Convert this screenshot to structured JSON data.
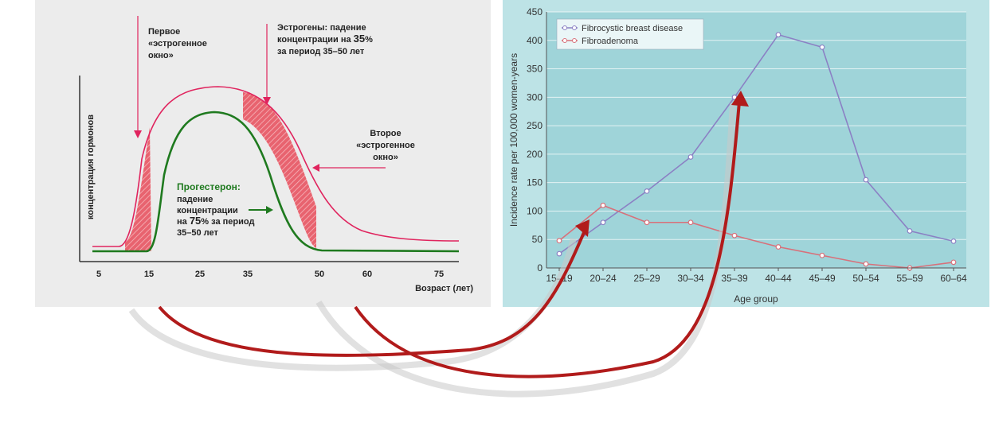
{
  "chart_data": [
    {
      "type": "line",
      "ylabel": "концентрация гормонов",
      "xlabel": "Возраст (лет)",
      "x_ticks": [
        "5",
        "15",
        "25",
        "35",
        "50",
        "60",
        "75"
      ],
      "annotations": {
        "first_window": [
          "Первое",
          "«эстрогенное",
          "окно»"
        ],
        "estrogen_drop": {
          "line1": "Эстрогены: падение",
          "line2_pre": "концентрации на ",
          "line2_bold": "35",
          "line2_post": "%",
          "line3": "за период 35–50 лет"
        },
        "second_window": [
          "Второе",
          "«эстрогенное",
          "окно»"
        ],
        "progesterone": {
          "title": "Прогестерон:",
          "line1": "падение",
          "line2": "концентрации",
          "line3_pre": "на ",
          "line3_bold": "75",
          "line3_post": "% за период",
          "line4": "35–50 лет"
        }
      },
      "series": [
        {
          "name": "Эстрогены",
          "color": "#e0245e"
        },
        {
          "name": "Прогестерон",
          "color": "#1f7a1f"
        }
      ]
    },
    {
      "type": "line",
      "xlabel": "Age group",
      "ylabel": "Incidence rate per 100,000 women-years",
      "ylim": [
        0,
        450
      ],
      "y_ticks": [
        0,
        50,
        100,
        150,
        200,
        250,
        300,
        350,
        400,
        450
      ],
      "categories": [
        "15–19",
        "20–24",
        "25–29",
        "30–34",
        "35–39",
        "40–44",
        "45–49",
        "50–54",
        "55–59",
        "60–64"
      ],
      "legend_position": "top-left",
      "series": [
        {
          "name": "Fibrocystic breast disease",
          "color": "#8b80c4",
          "values": [
            25,
            80,
            135,
            195,
            300,
            410,
            388,
            155,
            65,
            47
          ]
        },
        {
          "name": "Fibroadenoma",
          "color": "#d8707a",
          "values": [
            48,
            110,
            80,
            80,
            57,
            37,
            22,
            7,
            0,
            10
          ]
        }
      ]
    }
  ]
}
